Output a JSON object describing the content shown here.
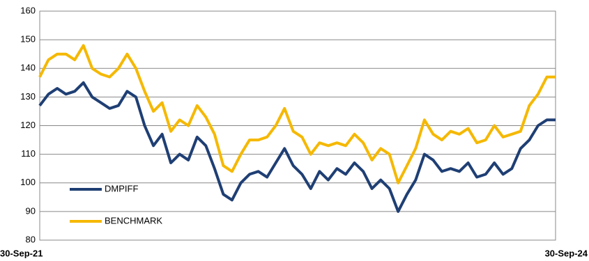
{
  "chart_data": {
    "type": "line",
    "categories": [
      "30-Sep-21",
      null,
      null,
      null,
      null,
      null,
      null,
      null,
      null,
      null,
      null,
      null,
      null,
      null,
      null,
      null,
      null,
      null,
      null,
      null,
      null,
      null,
      null,
      null,
      null,
      null,
      null,
      null,
      null,
      null,
      null,
      null,
      null,
      null,
      null,
      null,
      null,
      null,
      null,
      null,
      null,
      null,
      null,
      null,
      null,
      null,
      null,
      null,
      null,
      null,
      null,
      null,
      null,
      null,
      null,
      null,
      null,
      null,
      null,
      "30-Sep-24"
    ],
    "series": [
      {
        "name": "DMPIFF",
        "color": "#1f3f74",
        "values": [
          127,
          131,
          133,
          131,
          132,
          135,
          130,
          128,
          126,
          127,
          132,
          130,
          120,
          113,
          117,
          107,
          110,
          108,
          116,
          113,
          105,
          96,
          94,
          100,
          103,
          104,
          102,
          107,
          112,
          106,
          103,
          98,
          104,
          101,
          105,
          103,
          107,
          104,
          98,
          101,
          98,
          90,
          96,
          101,
          110,
          108,
          104,
          105,
          104,
          107,
          102,
          103,
          107,
          103,
          105,
          112,
          115,
          120,
          122,
          122
        ]
      },
      {
        "name": "BENCHMARK",
        "color": "#f5b800",
        "values": [
          137,
          143,
          145,
          145,
          143,
          148,
          140,
          138,
          137,
          140,
          145,
          140,
          132,
          125,
          128,
          118,
          122,
          120,
          127,
          123,
          117,
          106,
          104,
          110,
          115,
          115,
          116,
          120,
          126,
          118,
          116,
          110,
          114,
          113,
          114,
          113,
          117,
          114,
          108,
          112,
          110,
          100,
          106,
          112,
          122,
          117,
          115,
          118,
          117,
          119,
          114,
          115,
          120,
          116,
          117,
          118,
          127,
          131,
          137,
          137
        ]
      }
    ],
    "ylim": [
      80,
      160
    ],
    "yticks": [
      80,
      90,
      100,
      110,
      120,
      130,
      140,
      150,
      160
    ],
    "grid": true,
    "legend": "lower left"
  }
}
